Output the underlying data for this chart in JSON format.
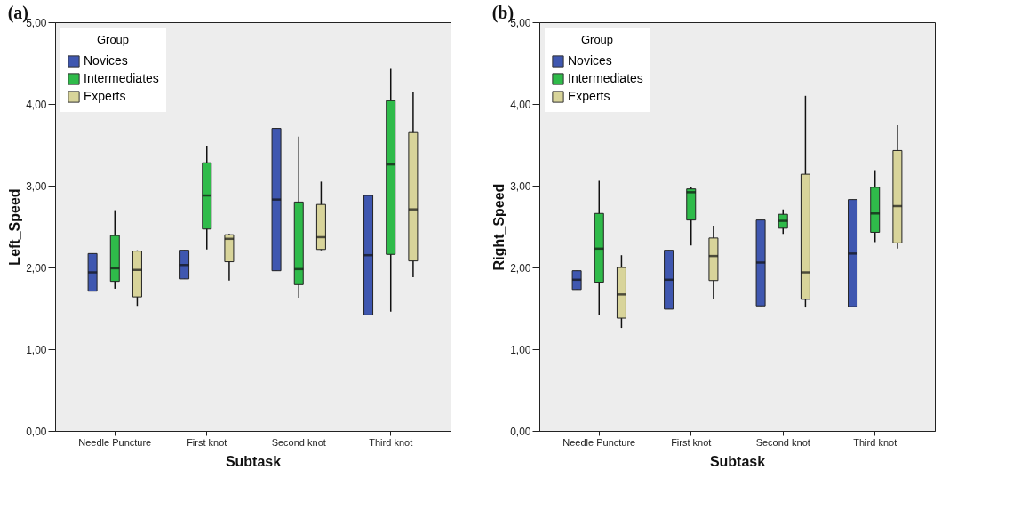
{
  "chart_data": [
    {
      "type": "box",
      "title": "(a)",
      "xlabel": "Subtask",
      "ylabel": "Left_Speed",
      "legend_title": "Group",
      "legend": "top left",
      "grid": false,
      "categories": [
        "Needle Puncture",
        "First knot",
        "Second knot",
        "Third knot"
      ],
      "ylim": [
        0,
        5
      ],
      "yticks": [
        {
          "value": 0,
          "label": "0,00"
        },
        {
          "value": 1,
          "label": "1,00"
        },
        {
          "value": 2,
          "label": "2,00"
        },
        {
          "value": 3,
          "label": "3,00"
        },
        {
          "value": 4,
          "label": "4,00"
        },
        {
          "value": 5,
          "label": "5,00"
        }
      ],
      "series": [
        {
          "name": "Novices",
          "color": "#3f57b0",
          "boxes": [
            {
              "low": 1.71,
              "q1": 1.71,
              "median": 1.94,
              "q3": 2.17,
              "high": 2.17
            },
            {
              "low": 1.86,
              "q1": 1.86,
              "median": 2.03,
              "q3": 2.21,
              "high": 2.21
            },
            {
              "low": 1.96,
              "q1": 1.96,
              "median": 2.83,
              "q3": 3.7,
              "high": 3.7
            },
            {
              "low": 1.42,
              "q1": 1.42,
              "median": 2.15,
              "q3": 2.88,
              "high": 2.88
            }
          ]
        },
        {
          "name": "Intermediates",
          "color": "#2fbb4a",
          "boxes": [
            {
              "low": 1.74,
              "q1": 1.83,
              "median": 1.99,
              "q3": 2.39,
              "high": 2.7
            },
            {
              "low": 2.22,
              "q1": 2.47,
              "median": 2.88,
              "q3": 3.28,
              "high": 3.49
            },
            {
              "low": 1.63,
              "q1": 1.79,
              "median": 1.98,
              "q3": 2.8,
              "high": 3.6
            },
            {
              "low": 1.46,
              "q1": 2.16,
              "median": 3.26,
              "q3": 4.04,
              "high": 4.43
            }
          ]
        },
        {
          "name": "Experts",
          "color": "#d8d49a",
          "boxes": [
            {
              "low": 1.53,
              "q1": 1.64,
              "median": 1.97,
              "q3": 2.2,
              "high": 2.21
            },
            {
              "low": 1.84,
              "q1": 2.07,
              "median": 2.35,
              "q3": 2.4,
              "high": 2.41
            },
            {
              "low": 2.21,
              "q1": 2.22,
              "median": 2.37,
              "q3": 2.77,
              "high": 3.05
            },
            {
              "low": 1.88,
              "q1": 2.08,
              "median": 2.71,
              "q3": 3.65,
              "high": 4.15
            }
          ]
        }
      ]
    },
    {
      "type": "box",
      "title": "(b)",
      "xlabel": "Subtask",
      "ylabel": "Right_Speed",
      "legend_title": "Group",
      "legend": "top left",
      "grid": false,
      "categories": [
        "Needle Puncture",
        "First knot",
        "Second knot",
        "Third knot"
      ],
      "ylim": [
        0,
        5
      ],
      "yticks": [
        {
          "value": 0,
          "label": "0,00"
        },
        {
          "value": 1,
          "label": "1,00"
        },
        {
          "value": 2,
          "label": "2,00"
        },
        {
          "value": 3,
          "label": "3,00"
        },
        {
          "value": 4,
          "label": "4,00"
        },
        {
          "value": 5,
          "label": "5,00"
        }
      ],
      "series": [
        {
          "name": "Novices",
          "color": "#3f57b0",
          "boxes": [
            {
              "low": 1.73,
              "q1": 1.73,
              "median": 1.85,
              "q3": 1.96,
              "high": 1.96
            },
            {
              "low": 1.49,
              "q1": 1.49,
              "median": 1.85,
              "q3": 2.21,
              "high": 2.21
            },
            {
              "low": 1.53,
              "q1": 1.53,
              "median": 2.06,
              "q3": 2.58,
              "high": 2.58
            },
            {
              "low": 1.52,
              "q1": 1.52,
              "median": 2.17,
              "q3": 2.83,
              "high": 2.83
            }
          ]
        },
        {
          "name": "Intermediates",
          "color": "#2fbb4a",
          "boxes": [
            {
              "low": 1.42,
              "q1": 1.82,
              "median": 2.23,
              "q3": 2.66,
              "high": 3.06
            },
            {
              "low": 2.27,
              "q1": 2.58,
              "median": 2.92,
              "q3": 2.96,
              "high": 2.98
            },
            {
              "low": 2.41,
              "q1": 2.48,
              "median": 2.57,
              "q3": 2.65,
              "high": 2.71
            },
            {
              "low": 2.31,
              "q1": 2.43,
              "median": 2.66,
              "q3": 2.98,
              "high": 3.19
            }
          ]
        },
        {
          "name": "Experts",
          "color": "#d8d49a",
          "boxes": [
            {
              "low": 1.26,
              "q1": 1.38,
              "median": 1.67,
              "q3": 2.0,
              "high": 2.15
            },
            {
              "low": 1.61,
              "q1": 1.84,
              "median": 2.14,
              "q3": 2.36,
              "high": 2.51
            },
            {
              "low": 1.51,
              "q1": 1.61,
              "median": 1.94,
              "q3": 3.14,
              "high": 4.1
            },
            {
              "low": 2.23,
              "q1": 2.3,
              "median": 2.75,
              "q3": 3.43,
              "high": 3.74
            }
          ]
        }
      ]
    }
  ]
}
